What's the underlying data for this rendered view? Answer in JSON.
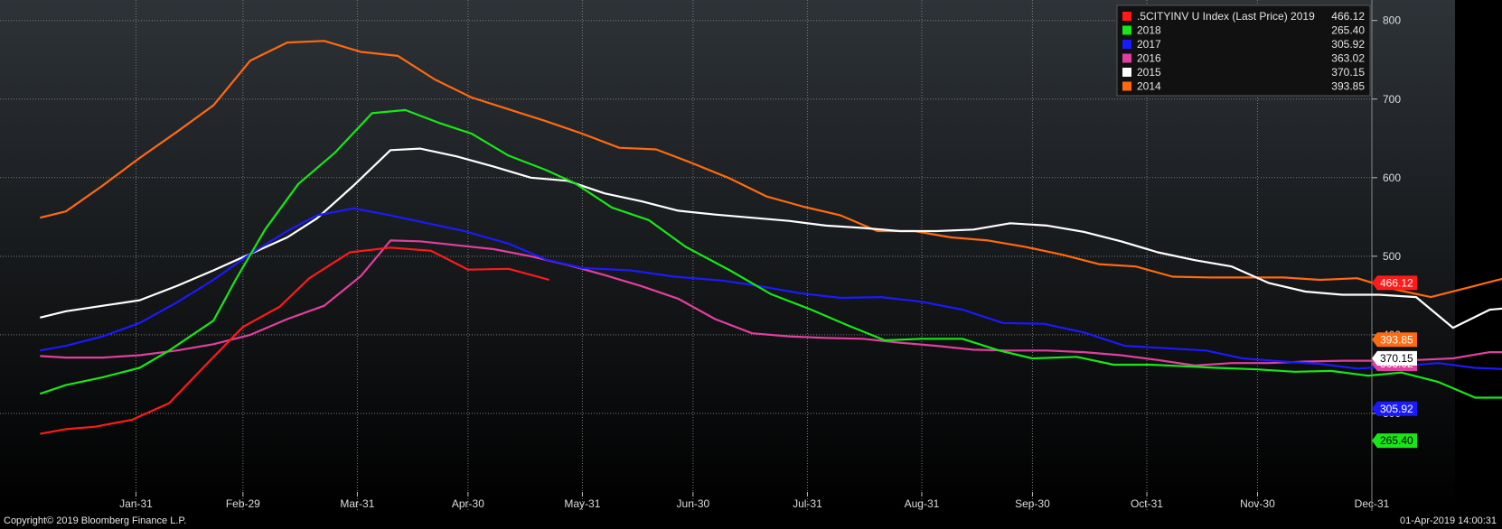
{
  "footer": {
    "copyright": "Copyright© 2019 Bloomberg Finance L.P.",
    "timestamp": "01-Apr-2019 14:00:31"
  },
  "chart_data": {
    "type": "line",
    "title": "",
    "xlabel": "",
    "ylabel": "",
    "x_ticks": [
      "Jan-31",
      "Feb-29",
      "Mar-31",
      "Apr-30",
      "May-31",
      "Jun-30",
      "Jul-31",
      "Aug-31",
      "Sep-30",
      "Oct-31",
      "Nov-30",
      "Dec-31"
    ],
    "x_range_days": [
      1,
      366
    ],
    "y_ticks": [
      300,
      400,
      500,
      600,
      700,
      800
    ],
    "y_tick_labels": [
      "300",
      "400",
      "500",
      "600",
      "700",
      "800"
    ],
    "ylim": [
      200,
      810
    ],
    "y_axis_side": "right",
    "grid": true,
    "legend_position": "top-right",
    "colors": {
      "background_top": "#2e3338",
      "background_bottom": "#000000",
      "grid": "#7a7a7a",
      "axis_text": "#dddddd"
    },
    "series": [
      {
        "name": ".5CITYINV U Index (Last Price) 2019",
        "color": "#ff1a1a",
        "last": "466.12",
        "points": [
          [
            5,
            274
          ],
          [
            12,
            280
          ],
          [
            20,
            283
          ],
          [
            30,
            292
          ],
          [
            40,
            313
          ],
          [
            50,
            362
          ],
          [
            60,
            410
          ],
          [
            70,
            436
          ],
          [
            78,
            472
          ],
          [
            89,
            505
          ],
          [
            100,
            511
          ],
          [
            111,
            507
          ],
          [
            121,
            483
          ],
          [
            132,
            484
          ],
          [
            143,
            470
          ]
        ]
      },
      {
        "name": "2018",
        "color": "#19e619",
        "last": "265.40",
        "points": [
          [
            5,
            325
          ],
          [
            12,
            336
          ],
          [
            22,
            346
          ],
          [
            32,
            358
          ],
          [
            40,
            380
          ],
          [
            52,
            418
          ],
          [
            58,
            470
          ],
          [
            66,
            534
          ],
          [
            75,
            592
          ],
          [
            85,
            632
          ],
          [
            95,
            682
          ],
          [
            104,
            686
          ],
          [
            113,
            670
          ],
          [
            122,
            656
          ],
          [
            132,
            628
          ],
          [
            142,
            610
          ],
          [
            150,
            593
          ],
          [
            160,
            562
          ],
          [
            170,
            546
          ],
          [
            180,
            512
          ],
          [
            192,
            482
          ],
          [
            203,
            452
          ],
          [
            214,
            432
          ],
          [
            224,
            412
          ],
          [
            234,
            393
          ],
          [
            244,
            395
          ],
          [
            255,
            395
          ],
          [
            265,
            380
          ],
          [
            274,
            370
          ],
          [
            286,
            372
          ],
          [
            296,
            362
          ],
          [
            306,
            362
          ],
          [
            315,
            360
          ],
          [
            324,
            358
          ],
          [
            335,
            356
          ],
          [
            345,
            353
          ],
          [
            355,
            354
          ],
          [
            365,
            348
          ],
          [
            374,
            352
          ],
          [
            384,
            340
          ],
          [
            394,
            320
          ],
          [
            404,
            320
          ],
          [
            414,
            312
          ],
          [
            424,
            298
          ],
          [
            434,
            292
          ],
          [
            444,
            291
          ],
          [
            454,
            287
          ],
          [
            465,
            278
          ],
          [
            475,
            274
          ],
          [
            485,
            270
          ],
          [
            495,
            267
          ],
          [
            505,
            265
          ],
          [
            515,
            266
          ],
          [
            525,
            267
          ],
          [
            535,
            267
          ],
          [
            545,
            265
          ]
        ]
      },
      {
        "name": "2017",
        "color": "#1a1aff",
        "last": "305.92",
        "points": [
          [
            5,
            380
          ],
          [
            12,
            386
          ],
          [
            22,
            398
          ],
          [
            32,
            415
          ],
          [
            42,
            441
          ],
          [
            52,
            470
          ],
          [
            62,
            503
          ],
          [
            72,
            532
          ],
          [
            80,
            552
          ],
          [
            90,
            561
          ],
          [
            100,
            552
          ],
          [
            110,
            542
          ],
          [
            120,
            532
          ],
          [
            132,
            516
          ],
          [
            142,
            496
          ],
          [
            152,
            485
          ],
          [
            165,
            482
          ],
          [
            177,
            474
          ],
          [
            190,
            469
          ],
          [
            200,
            462
          ],
          [
            211,
            453
          ],
          [
            222,
            447
          ],
          [
            233,
            448
          ],
          [
            244,
            442
          ],
          [
            255,
            432
          ],
          [
            266,
            415
          ],
          [
            277,
            414
          ],
          [
            288,
            403
          ],
          [
            299,
            386
          ],
          [
            310,
            383
          ],
          [
            321,
            380
          ],
          [
            331,
            370
          ],
          [
            342,
            366
          ],
          [
            352,
            363
          ],
          [
            362,
            357
          ],
          [
            373,
            360
          ],
          [
            384,
            364
          ],
          [
            394,
            358
          ],
          [
            404,
            356
          ],
          [
            414,
            357
          ],
          [
            424,
            350
          ],
          [
            434,
            350
          ],
          [
            445,
            353
          ],
          [
            455,
            354
          ],
          [
            466,
            356
          ],
          [
            476,
            350
          ],
          [
            486,
            366
          ],
          [
            496,
            388
          ],
          [
            506,
            376
          ],
          [
            516,
            378
          ],
          [
            526,
            375
          ],
          [
            537,
            364
          ],
          [
            547,
            358
          ],
          [
            557,
            345
          ],
          [
            567,
            335
          ],
          [
            576,
            313
          ],
          [
            586,
            305
          ],
          [
            596,
            306
          ],
          [
            606,
            306
          ],
          [
            616,
            306
          ],
          [
            626,
            306
          ]
        ]
      },
      {
        "name": "2016",
        "color": "#e040a0",
        "last": "363.02",
        "points": [
          [
            5,
            373
          ],
          [
            12,
            371
          ],
          [
            22,
            371
          ],
          [
            32,
            374
          ],
          [
            42,
            380
          ],
          [
            52,
            388
          ],
          [
            62,
            400
          ],
          [
            72,
            420
          ],
          [
            82,
            437
          ],
          [
            92,
            475
          ],
          [
            100,
            520
          ],
          [
            108,
            519
          ],
          [
            118,
            514
          ],
          [
            128,
            509
          ],
          [
            138,
            500
          ],
          [
            148,
            489
          ],
          [
            158,
            476
          ],
          [
            168,
            462
          ],
          [
            178,
            446
          ],
          [
            188,
            420
          ],
          [
            198,
            402
          ],
          [
            208,
            398
          ],
          [
            218,
            396
          ],
          [
            228,
            395
          ],
          [
            238,
            390
          ],
          [
            248,
            386
          ],
          [
            258,
            381
          ],
          [
            268,
            380
          ],
          [
            278,
            380
          ],
          [
            288,
            378
          ],
          [
            298,
            374
          ],
          [
            308,
            368
          ],
          [
            318,
            361
          ],
          [
            328,
            364
          ],
          [
            338,
            364
          ],
          [
            348,
            366
          ],
          [
            358,
            367
          ],
          [
            368,
            367
          ],
          [
            378,
            368
          ],
          [
            388,
            370
          ],
          [
            398,
            378
          ],
          [
            408,
            378
          ],
          [
            418,
            374
          ],
          [
            428,
            363
          ],
          [
            438,
            368
          ],
          [
            448,
            372
          ],
          [
            458,
            358
          ],
          [
            468,
            346
          ],
          [
            478,
            339
          ],
          [
            488,
            329
          ],
          [
            498,
            326
          ],
          [
            508,
            324
          ],
          [
            518,
            336
          ],
          [
            528,
            340
          ],
          [
            538,
            340
          ],
          [
            548,
            352
          ],
          [
            558,
            363
          ]
        ]
      },
      {
        "name": "2015",
        "color": "#ffffff",
        "last": "370.15",
        "points": [
          [
            5,
            422
          ],
          [
            12,
            430
          ],
          [
            22,
            437
          ],
          [
            32,
            444
          ],
          [
            42,
            462
          ],
          [
            52,
            482
          ],
          [
            62,
            503
          ],
          [
            72,
            524
          ],
          [
            80,
            548
          ],
          [
            90,
            590
          ],
          [
            100,
            635
          ],
          [
            108,
            637
          ],
          [
            118,
            627
          ],
          [
            128,
            614
          ],
          [
            138,
            600
          ],
          [
            148,
            596
          ],
          [
            158,
            580
          ],
          [
            168,
            570
          ],
          [
            178,
            558
          ],
          [
            188,
            553
          ],
          [
            198,
            549
          ],
          [
            208,
            545
          ],
          [
            218,
            539
          ],
          [
            228,
            536
          ],
          [
            238,
            532
          ],
          [
            248,
            532
          ],
          [
            258,
            534
          ],
          [
            268,
            542
          ],
          [
            278,
            539
          ],
          [
            288,
            531
          ],
          [
            298,
            519
          ],
          [
            308,
            505
          ],
          [
            318,
            495
          ],
          [
            328,
            487
          ],
          [
            338,
            466
          ],
          [
            348,
            455
          ],
          [
            358,
            451
          ],
          [
            368,
            451
          ],
          [
            378,
            448
          ],
          [
            388,
            409
          ],
          [
            398,
            432
          ],
          [
            408,
            436
          ],
          [
            418,
            441
          ],
          [
            428,
            431
          ],
          [
            438,
            420
          ],
          [
            448,
            404
          ],
          [
            458,
            395
          ],
          [
            468,
            388
          ],
          [
            478,
            378
          ],
          [
            488,
            375
          ],
          [
            498,
            374
          ],
          [
            508,
            372
          ],
          [
            518,
            374
          ],
          [
            528,
            374
          ],
          [
            538,
            374
          ],
          [
            548,
            374
          ]
        ]
      },
      {
        "name": "2014",
        "color": "#ff6a10",
        "last": "393.85",
        "points": [
          [
            5,
            549
          ],
          [
            12,
            557
          ],
          [
            22,
            590
          ],
          [
            32,
            625
          ],
          [
            42,
            658
          ],
          [
            52,
            692
          ],
          [
            62,
            749
          ],
          [
            72,
            772
          ],
          [
            82,
            774
          ],
          [
            92,
            760
          ],
          [
            102,
            755
          ],
          [
            112,
            725
          ],
          [
            122,
            702
          ],
          [
            132,
            687
          ],
          [
            142,
            672
          ],
          [
            152,
            656
          ],
          [
            162,
            638
          ],
          [
            172,
            636
          ],
          [
            182,
            618
          ],
          [
            192,
            599
          ],
          [
            202,
            576
          ],
          [
            212,
            563
          ],
          [
            222,
            552
          ],
          [
            232,
            532
          ],
          [
            242,
            532
          ],
          [
            252,
            524
          ],
          [
            262,
            520
          ],
          [
            272,
            512
          ],
          [
            282,
            502
          ],
          [
            292,
            490
          ],
          [
            302,
            487
          ],
          [
            312,
            474
          ],
          [
            322,
            473
          ],
          [
            332,
            473
          ],
          [
            342,
            473
          ],
          [
            352,
            470
          ],
          [
            362,
            472
          ],
          [
            372,
            458
          ],
          [
            382,
            448
          ],
          [
            392,
            460
          ],
          [
            402,
            472
          ],
          [
            412,
            450
          ],
          [
            422,
            437
          ],
          [
            432,
            407
          ],
          [
            442,
            413
          ],
          [
            452,
            410
          ],
          [
            462,
            399
          ],
          [
            472,
            392
          ],
          [
            482,
            389
          ],
          [
            492,
            392
          ],
          [
            502,
            392
          ],
          [
            512,
            390
          ],
          [
            522,
            392
          ]
        ]
      }
    ]
  }
}
